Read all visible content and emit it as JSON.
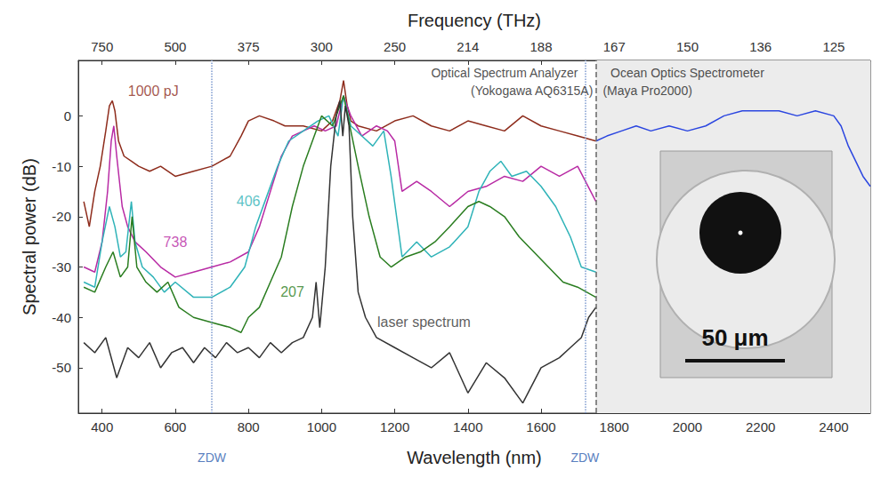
{
  "chart_data": {
    "type": "line",
    "x_label": "Wavelength (nm)",
    "y_label": "Spectral power (dB)",
    "x2_label": "Frequency (THz)",
    "xlim": [
      335,
      2500
    ],
    "xticks": [
      400,
      600,
      800,
      1000,
      1200,
      1400,
      1600,
      1800,
      2000,
      2200,
      2400
    ],
    "x2lim": [
      335,
      2500
    ],
    "x2ticks": [
      {
        "value": 400,
        "label": "750"
      },
      {
        "value": 600,
        "label": "500"
      },
      {
        "value": 800,
        "label": "375"
      },
      {
        "value": 1000,
        "label": "300"
      },
      {
        "value": 1200,
        "label": "250"
      },
      {
        "value": 1400,
        "label": "214"
      },
      {
        "value": 1600,
        "label": "188"
      },
      {
        "value": 1800,
        "label": "167"
      },
      {
        "value": 2000,
        "label": "150"
      },
      {
        "value": 2200,
        "label": "136"
      },
      {
        "value": 2400,
        "label": "125"
      }
    ],
    "ylim": [
      -59,
      11
    ],
    "yticks": [
      -50,
      -40,
      -30,
      -20,
      -10,
      0
    ],
    "grid": false,
    "series": [
      {
        "name": "1000 pJ",
        "color": "#8e2c1c",
        "label_x": 540,
        "label_y": 5,
        "x": [
          350,
          365,
          380,
          395,
          410,
          420,
          428,
          435,
          445,
          460,
          480,
          500,
          530,
          560,
          600,
          650,
          700,
          750,
          780,
          800,
          830,
          870,
          900,
          950,
          1000,
          1030,
          1050,
          1060,
          1070,
          1080,
          1100,
          1150,
          1200,
          1250,
          1300,
          1350,
          1400,
          1450,
          1500,
          1550,
          1600,
          1650,
          1700,
          1750
        ],
        "values": [
          -17,
          -22,
          -15,
          -10,
          -3,
          2,
          3,
          1,
          -5,
          -8,
          -9,
          -10,
          -11,
          -10,
          -12,
          -11,
          -10,
          -8,
          -4,
          -1,
          0,
          -1,
          -2,
          -2,
          -3,
          -1,
          3,
          7,
          2,
          -1,
          -2,
          -3,
          -1,
          0,
          -2,
          -3,
          -1,
          -2,
          -3,
          0,
          -2,
          -3,
          -4,
          -5
        ]
      },
      {
        "name": "738",
        "color": "#b82aa4",
        "label_x": 600,
        "label_y": -25,
        "x": [
          350,
          380,
          400,
          415,
          425,
          432,
          440,
          455,
          470,
          490,
          520,
          560,
          600,
          650,
          700,
          750,
          800,
          830,
          860,
          890,
          920,
          950,
          980,
          1010,
          1040,
          1060,
          1080,
          1110,
          1150,
          1180,
          1200,
          1220,
          1260,
          1300,
          1350,
          1400,
          1450,
          1500,
          1550,
          1600,
          1650,
          1700,
          1750
        ],
        "values": [
          -30,
          -31,
          -25,
          -15,
          -5,
          -2,
          -8,
          -18,
          -22,
          -25,
          -27,
          -30,
          -32,
          -31,
          -30,
          -29,
          -27,
          -22,
          -15,
          -8,
          -4,
          -3,
          -2,
          -3,
          -2,
          4,
          0,
          -4,
          -2,
          -3,
          -5,
          -15,
          -13,
          -15,
          -18,
          -15,
          -14,
          -12,
          -13,
          -10,
          -12,
          -10,
          -17
        ]
      },
      {
        "name": "406",
        "color": "#2fb3b8",
        "label_x": 800,
        "label_y": -17,
        "x": [
          350,
          380,
          400,
          420,
          435,
          450,
          465,
          480,
          490,
          510,
          540,
          570,
          600,
          650,
          700,
          750,
          790,
          820,
          850,
          880,
          910,
          950,
          990,
          1020,
          1045,
          1060,
          1080,
          1110,
          1140,
          1170,
          1190,
          1220,
          1260,
          1300,
          1350,
          1400,
          1430,
          1460,
          1490,
          1520,
          1560,
          1600,
          1640,
          1680,
          1710,
          1750
        ],
        "values": [
          -33,
          -34,
          -25,
          -18,
          -22,
          -28,
          -27,
          -17,
          -25,
          -30,
          -32,
          -35,
          -33,
          -36,
          -36,
          -34,
          -30,
          -22,
          -16,
          -10,
          -5,
          -3,
          -1,
          0,
          -4,
          4,
          -2,
          -4,
          -6,
          -3,
          -12,
          -28,
          -25,
          -28,
          -26,
          -22,
          -15,
          -11,
          -9,
          -12,
          -11,
          -14,
          -18,
          -24,
          -30,
          -31
        ]
      },
      {
        "name": "207",
        "color": "#2a7d20",
        "label_x": 920,
        "label_y": -35,
        "x": [
          350,
          380,
          410,
          430,
          450,
          470,
          482,
          495,
          520,
          550,
          580,
          610,
          650,
          700,
          750,
          780,
          800,
          830,
          860,
          890,
          920,
          950,
          980,
          1000,
          1030,
          1060,
          1080,
          1100,
          1130,
          1160,
          1190,
          1230,
          1270,
          1310,
          1350,
          1400,
          1430,
          1460,
          1500,
          1540,
          1580,
          1620,
          1660,
          1700,
          1750
        ],
        "values": [
          -34,
          -35,
          -30,
          -27,
          -32,
          -30,
          -20,
          -30,
          -33,
          -35,
          -33,
          -38,
          -40,
          -41,
          -42,
          -43,
          -40,
          -38,
          -33,
          -28,
          -18,
          -10,
          -4,
          0,
          -2,
          4,
          -3,
          -10,
          -20,
          -28,
          -30,
          -28,
          -27,
          -25,
          -22,
          -18,
          -17,
          -18,
          -20,
          -24,
          -27,
          -30,
          -33,
          -34,
          -36
        ]
      },
      {
        "name": "laser spectrum",
        "color": "#333333",
        "label_x": 1280,
        "label_y": -41,
        "x": [
          350,
          380,
          410,
          440,
          470,
          500,
          530,
          560,
          590,
          620,
          650,
          680,
          710,
          740,
          770,
          800,
          830,
          860,
          890,
          920,
          950,
          975,
          985,
          995,
          1010,
          1025,
          1040,
          1050,
          1058,
          1065,
          1075,
          1085,
          1100,
          1120,
          1150,
          1200,
          1250,
          1300,
          1350,
          1400,
          1450,
          1500,
          1550,
          1600,
          1650,
          1680,
          1710,
          1730,
          1750
        ],
        "values": [
          -45,
          -47,
          -44,
          -52,
          -46,
          -48,
          -45,
          -50,
          -47,
          -46,
          -49,
          -46,
          -48,
          -45,
          -47,
          -46,
          -48,
          -45,
          -47,
          -45,
          -44,
          -40,
          -33,
          -42,
          -30,
          -10,
          0,
          3,
          -4,
          2,
          -2,
          -20,
          -35,
          -40,
          -44,
          -46,
          -48,
          -50,
          -47,
          -55,
          -49,
          -52,
          -57,
          -50,
          -48,
          -46,
          -44,
          -40,
          -38
        ]
      },
      {
        "color": "#2b46e0",
        "x": [
          1750,
          1780,
          1820,
          1860,
          1900,
          1950,
          2000,
          2050,
          2100,
          2150,
          2200,
          2250,
          2300,
          2350,
          2400,
          2420,
          2440,
          2460,
          2480,
          2500
        ],
        "values": [
          -5,
          -4,
          -3,
          -2,
          -3,
          -2,
          -3,
          -2,
          0,
          1,
          1,
          1,
          0,
          1,
          0,
          -2,
          -6,
          -9,
          -12,
          -14
        ]
      }
    ],
    "zdw": [
      {
        "x": 700,
        "label": "ZDW"
      },
      {
        "x": 1720,
        "label": "ZDW"
      }
    ],
    "instrument_boundary": 1750,
    "shaded_region": [
      1750,
      2500
    ],
    "annotations": [
      {
        "text": "Optical Spectrum Analyzer",
        "x": 1500,
        "y": 8.5
      },
      {
        "text": "(Yokogawa AQ6315A)",
        "x": 1575,
        "y": 5
      },
      {
        "text": "Ocean Optics Spectrometer",
        "x": 2000,
        "y": 8.5
      },
      {
        "text": "(Maya Pro2000)",
        "x": 1891,
        "y": 5
      }
    ],
    "inset": {
      "scale_bar_label": "50 μm"
    }
  }
}
